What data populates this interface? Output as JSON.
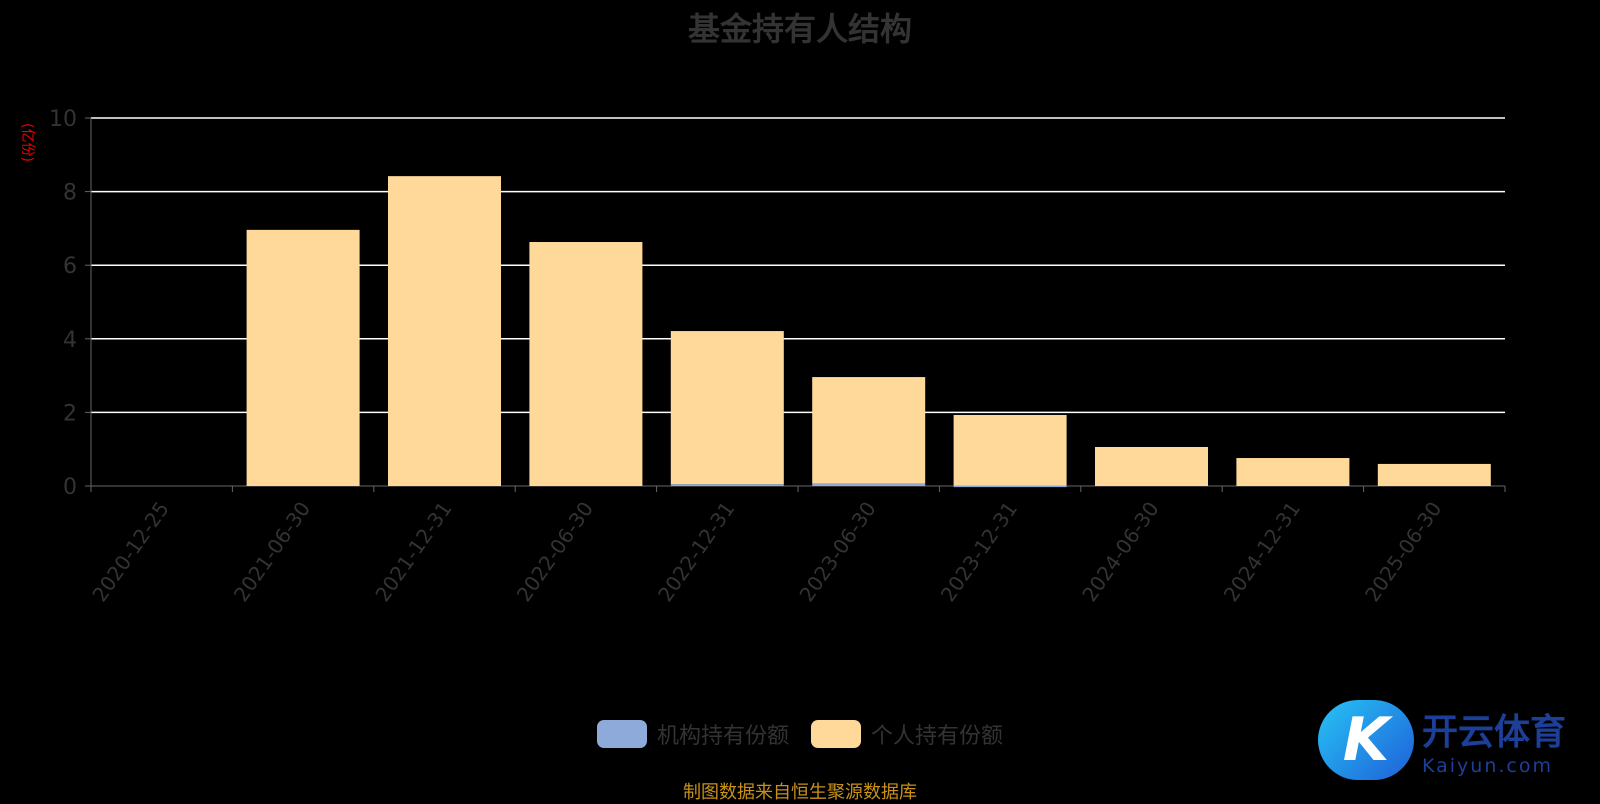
{
  "chart_data": {
    "type": "bar",
    "stacked": true,
    "title": "基金持有人结构",
    "ylabel": "(亿份)",
    "xlabel": "",
    "ylim": [
      0,
      10
    ],
    "yticks": [
      0,
      2,
      4,
      6,
      8,
      10
    ],
    "grid": true,
    "legend_position": "bottom",
    "categories": [
      "2020-12-25",
      "2021-06-30",
      "2021-12-31",
      "2022-06-30",
      "2022-12-31",
      "2023-06-30",
      "2023-12-31",
      "2024-06-30",
      "2024-12-31",
      "2025-06-30"
    ],
    "series": [
      {
        "name": "机构持有份额",
        "color": "#8eaadb",
        "values": [
          0,
          0,
          0,
          0,
          0.05,
          0.07,
          0.01,
          0,
          0,
          0
        ]
      },
      {
        "name": "个人持有份额",
        "color": "#ffd999",
        "values": [
          0,
          6.96,
          8.42,
          6.63,
          4.16,
          2.89,
          1.92,
          1.06,
          0.76,
          0.6
        ]
      }
    ]
  },
  "source": "制图数据来自恒生聚源数据库",
  "watermark": {
    "cn": "开云体育",
    "en": "Kaiyun.com"
  },
  "colors": {
    "background": "#000000",
    "axis": "#666666",
    "grid": "#ffffff",
    "unit": "#ee0000",
    "source": "#c8921a"
  }
}
